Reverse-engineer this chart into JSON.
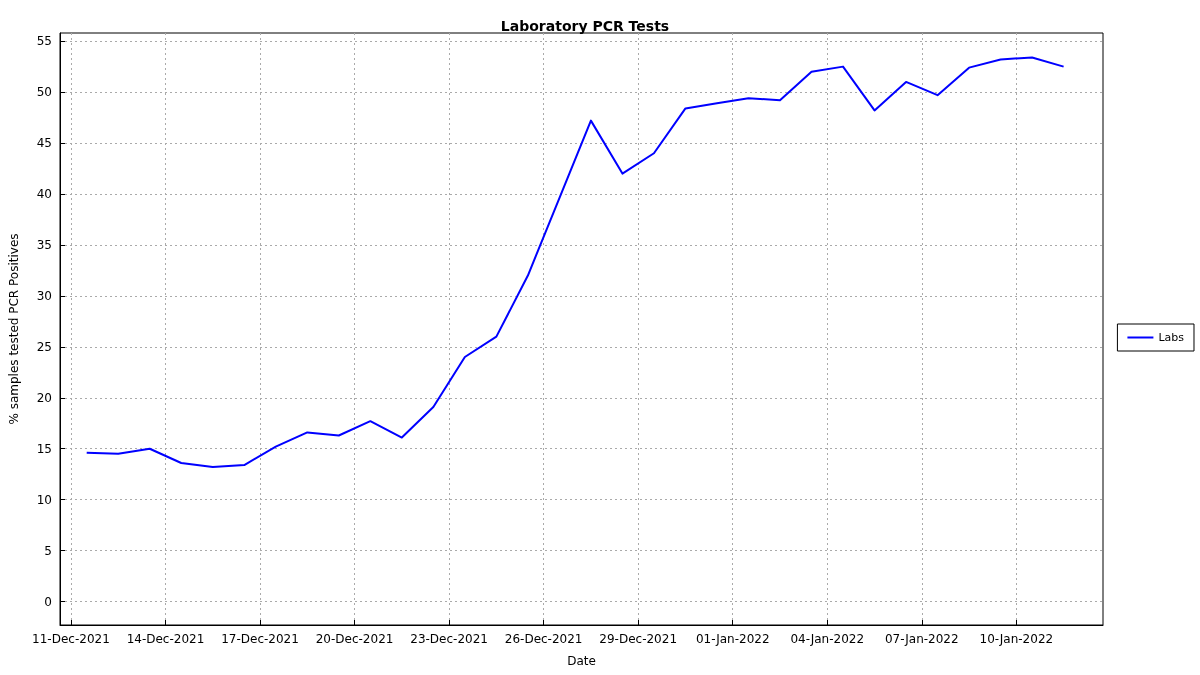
{
  "chart_data": {
    "type": "line",
    "title": "Laboratory PCR Tests",
    "xlabel": "Date",
    "ylabel": "% samples tested PCR Positives",
    "x": [
      "2021-12-11T12:00",
      "2021-12-12T12:00",
      "2021-12-13T12:00",
      "2021-12-14T12:00",
      "2021-12-15T12:00",
      "2021-12-16T12:00",
      "2021-12-17T12:00",
      "2021-12-18T12:00",
      "2021-12-19T12:00",
      "2021-12-20T12:00",
      "2021-12-21T12:00",
      "2021-12-22T12:00",
      "2021-12-23T12:00",
      "2021-12-24T12:00",
      "2021-12-25T12:00",
      "2021-12-26T12:00",
      "2021-12-27T12:00",
      "2021-12-28T12:00",
      "2021-12-29T12:00",
      "2021-12-30T12:00",
      "2021-12-31T12:00",
      "2022-01-01T12:00",
      "2022-01-02T12:00",
      "2022-01-03T12:00",
      "2022-01-04T12:00",
      "2022-01-05T12:00",
      "2022-01-06T12:00",
      "2022-01-07T12:00",
      "2022-01-08T12:00",
      "2022-01-09T12:00",
      "2022-01-10T12:00",
      "2022-01-11T12:00"
    ],
    "series": [
      {
        "name": "Labs",
        "color": "#0000ff",
        "values": [
          14.6,
          14.5,
          15.0,
          13.6,
          13.2,
          13.4,
          15.2,
          16.6,
          16.3,
          17.7,
          16.1,
          19.1,
          24.0,
          26.0,
          32.0,
          39.6,
          47.2,
          42.0,
          44.0,
          48.4,
          48.9,
          49.4,
          49.2,
          52.0,
          52.5,
          48.2,
          51.0,
          49.7,
          52.4,
          53.2,
          53.4,
          52.5
        ]
      }
    ],
    "xlim": [
      "2021-12-10T15:40",
      "2022-01-12T18:00"
    ],
    "xticks": [
      {
        "value": "2021-12-11",
        "label": "11-Dec-2021"
      },
      {
        "value": "2021-12-14",
        "label": "14-Dec-2021"
      },
      {
        "value": "2021-12-17",
        "label": "17-Dec-2021"
      },
      {
        "value": "2021-12-20",
        "label": "20-Dec-2021"
      },
      {
        "value": "2021-12-23",
        "label": "23-Dec-2021"
      },
      {
        "value": "2021-12-26",
        "label": "26-Dec-2021"
      },
      {
        "value": "2021-12-29",
        "label": "29-Dec-2021"
      },
      {
        "value": "2022-01-01",
        "label": "01-Jan-2022"
      },
      {
        "value": "2022-01-04",
        "label": "04-Jan-2022"
      },
      {
        "value": "2022-01-07",
        "label": "07-Jan-2022"
      },
      {
        "value": "2022-01-10",
        "label": "10-Jan-2022"
      }
    ],
    "ylim": [
      -2.3,
      55.8
    ],
    "yticks": [
      0,
      5,
      10,
      15,
      20,
      25,
      30,
      35,
      40,
      45,
      50,
      55
    ],
    "grid": true,
    "legend": "right",
    "marker": "none",
    "line_style": "solid"
  }
}
